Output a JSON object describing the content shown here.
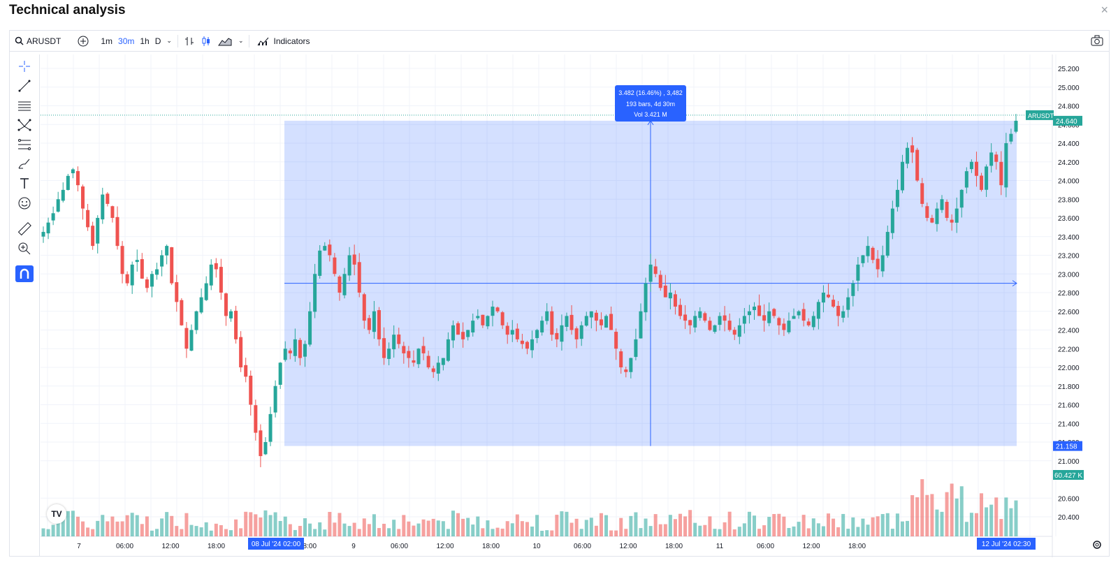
{
  "dialog": {
    "title": "Technical analysis",
    "close": "×"
  },
  "toolbar": {
    "symbol": "ARUSDT",
    "intervals": [
      "1m",
      "30m",
      "1h",
      "D"
    ],
    "active_interval": "30m",
    "indicators_label": "Indicators"
  },
  "left_tools": [
    "crosshair-icon",
    "trend-line-icon",
    "horizontal-lines-icon",
    "pattern-icon",
    "fib-icon",
    "brush-icon",
    "text-icon",
    "emoji-icon",
    "ruler-icon",
    "zoom-in-icon",
    "magnet-icon"
  ],
  "colors": {
    "up": "#26a69a",
    "down": "#ef5350",
    "range_fill": "#2962ff",
    "accent": "#2962ff"
  },
  "price_axis": {
    "ticks": [
      "25.200",
      "25.000",
      "24.800",
      "24.600",
      "24.400",
      "24.200",
      "24.000",
      "23.800",
      "23.600",
      "23.400",
      "23.200",
      "23.000",
      "22.800",
      "22.600",
      "22.400",
      "22.200",
      "22.000",
      "21.800",
      "21.600",
      "21.400",
      "21.200",
      "21.000",
      "20.600",
      "20.400"
    ]
  },
  "badges": {
    "symbol_tag": "ARUSDT",
    "last_price": "24.640",
    "range_low": "21.158",
    "volume": "60.427 K",
    "range_start_label": "08 Jul '24   02:00",
    "range_end_label": "12 Jul '24   02:30"
  },
  "measure": {
    "line1": "3.482 (16.46%) , 3,482",
    "line2": "193 bars, 4d 30m",
    "line3": "Vol 3.421 M"
  },
  "time_axis": {
    "ticks": [
      "7",
      "06:00",
      "12:00",
      "18:00",
      "12:00",
      "18:00",
      "9",
      "06:00",
      "12:00",
      "18:00",
      "10",
      "06:00",
      "12:00",
      "18:00",
      "11",
      "06:00",
      "12:00",
      "18:00"
    ]
  },
  "chart_data": {
    "type": "candlestick",
    "symbol": "ARUSDT",
    "interval": "30m",
    "ylim": [
      20.3,
      25.3
    ],
    "measured_range": {
      "from_price": 21.158,
      "to_price": 24.64,
      "change": "3.482 (16.46%)",
      "bars": 193,
      "duration": "4d 30m",
      "volume": "3.421 M"
    },
    "close_path": [
      23.45,
      23.55,
      23.65,
      23.8,
      23.9,
      24.05,
      24.12,
      23.95,
      23.7,
      23.5,
      23.3,
      23.6,
      23.85,
      23.75,
      23.6,
      23.3,
      23.0,
      22.9,
      23.1,
      23.15,
      22.95,
      22.85,
      23.0,
      23.05,
      23.2,
      23.3,
      22.9,
      22.7,
      22.45,
      22.2,
      22.4,
      22.6,
      22.75,
      22.9,
      23.1,
      23.05,
      22.8,
      22.55,
      22.6,
      22.3,
      22.0,
      21.9,
      21.6,
      21.3,
      21.05,
      21.2,
      21.5,
      21.8,
      22.05,
      22.2,
      22.15,
      22.3,
      22.1,
      22.25,
      22.6,
      23.0,
      23.25,
      23.3,
      23.2,
      23.0,
      22.8,
      23.0,
      23.2,
      23.1,
      22.8,
      22.5,
      22.4,
      22.6,
      22.3,
      22.1,
      22.2,
      22.35,
      22.25,
      22.15,
      22.1,
      22.05,
      22.2,
      22.15,
      22.0,
      21.95,
      22.05,
      22.1,
      22.3,
      22.45,
      22.35,
      22.3,
      22.4,
      22.5,
      22.55,
      22.45,
      22.55,
      22.65,
      22.6,
      22.45,
      22.35,
      22.4,
      22.3,
      22.25,
      22.2,
      22.3,
      22.4,
      22.5,
      22.6,
      22.35,
      22.3,
      22.45,
      22.55,
      22.4,
      22.3,
      22.45,
      22.55,
      22.6,
      22.5,
      22.45,
      22.55,
      22.4,
      22.2,
      22.0,
      21.95,
      22.1,
      22.3,
      22.6,
      22.9,
      23.1,
      23.0,
      22.85,
      22.75,
      22.8,
      22.65,
      22.55,
      22.5,
      22.45,
      22.55,
      22.6,
      22.5,
      22.4,
      22.45,
      22.55,
      22.5,
      22.4,
      22.35,
      22.45,
      22.55,
      22.6,
      22.65,
      22.55,
      22.5,
      22.6,
      22.55,
      22.45,
      22.4,
      22.5,
      22.55,
      22.6,
      22.5,
      22.45,
      22.55,
      22.7,
      22.8,
      22.75,
      22.65,
      22.55,
      22.6,
      22.75,
      22.9,
      23.1,
      23.2,
      23.3,
      23.15,
      23.05,
      23.2,
      23.45,
      23.7,
      23.9,
      24.2,
      24.35,
      24.3,
      24.0,
      23.75,
      23.6,
      23.55,
      23.7,
      23.8,
      23.6,
      23.55,
      23.7,
      23.9,
      24.1,
      24.2,
      24.05,
      23.9,
      24.15,
      24.3,
      24.2,
      23.95,
      24.4,
      24.5,
      24.64
    ]
  }
}
